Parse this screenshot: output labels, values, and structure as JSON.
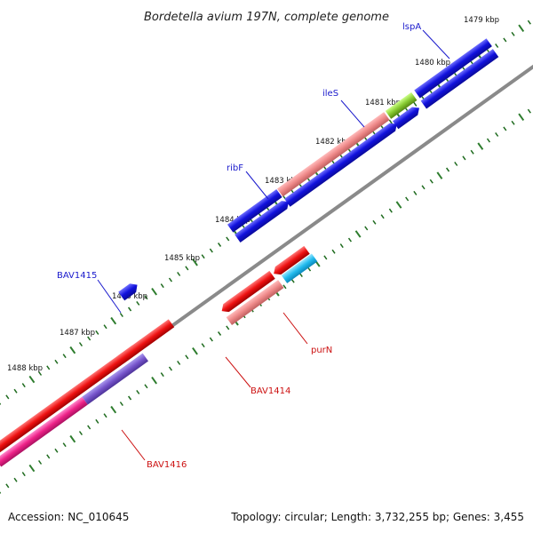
{
  "title": "Bordetella avium 197N, complete genome",
  "footer": {
    "accession": "Accession: NC_010645",
    "summary": "Topology: circular; Length: 3,732,255 bp; Genes: 3,455"
  },
  "scale": {
    "unit": "kbp",
    "ticks": [
      "1479 kbp",
      "1480 kbp",
      "1481 kbp",
      "1482 kbp",
      "1483 kbp",
      "1484 kbp",
      "1485 kbp",
      "1486 kbp",
      "1487 kbp",
      "1488 kbp"
    ]
  },
  "colors": {
    "backbone": "#8a8a8a",
    "tick_major": "#2e7d2e",
    "tick_minor": "#1f6b1f",
    "label_blue": "#1a1acc",
    "label_red": "#cc1111"
  },
  "genes": {
    "lspA": {
      "label": "lspA",
      "color": "#1a1acc"
    },
    "ileS": {
      "label": "ileS",
      "color": "#1a1acc"
    },
    "ribF": {
      "label": "ribF",
      "color": "#1a1acc"
    },
    "BAV1415": {
      "label": "BAV1415",
      "color": "#1a1acc"
    },
    "purN": {
      "label": "purN",
      "color": "#cc1111"
    },
    "BAV1414": {
      "label": "BAV1414",
      "color": "#cc1111"
    },
    "BAV1416": {
      "label": "BAV1416",
      "color": "#cc1111"
    }
  },
  "feature_colors": {
    "cds_blue": "#1111dd",
    "cds_red": "#ee1111",
    "cds_salmon": "#ee8888",
    "cds_green": "#88cc33",
    "cds_cyan": "#22bbee",
    "cds_purple": "#7755cc",
    "cds_magenta": "#ee2288"
  }
}
